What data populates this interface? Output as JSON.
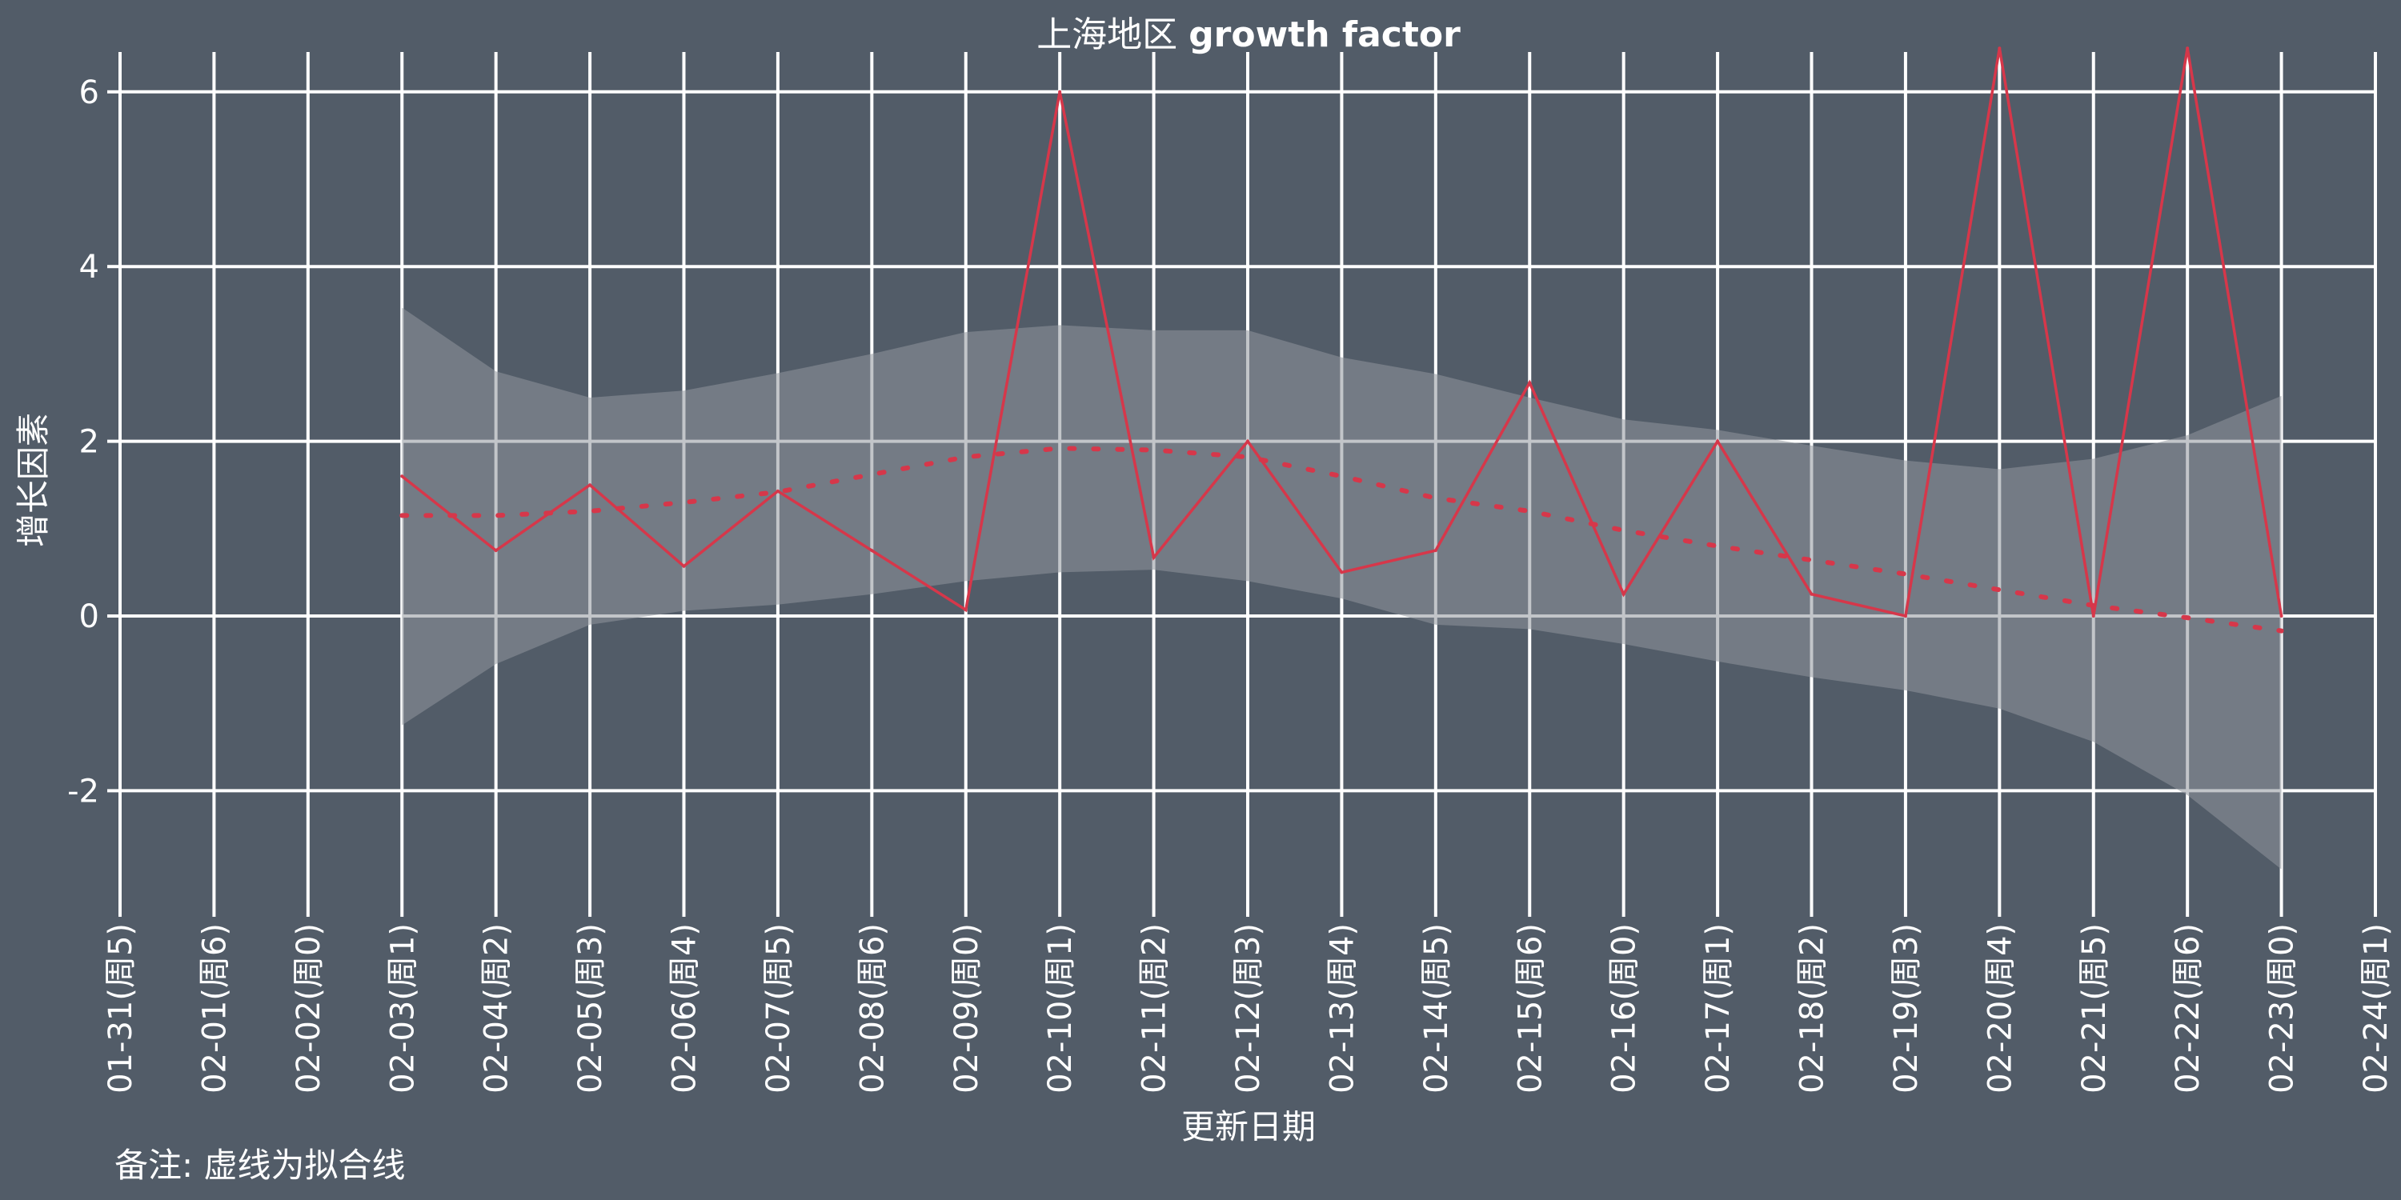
{
  "chart_data": {
    "type": "line",
    "title_prefix": "上海地区",
    "title_suffix": "growth factor",
    "xlabel": "更新日期",
    "ylabel": "增长因素",
    "note": "备注: 虚线为拟合线",
    "ylim": [
      -3.4,
      6.5
    ],
    "y_ticks": [
      -2,
      0,
      2,
      4,
      6
    ],
    "y_tick_labels": [
      "-2",
      "0",
      "2",
      "4",
      "6"
    ],
    "x_tick_labels": [
      "01-31(周5)",
      "02-01(周6)",
      "02-02(周0)",
      "02-03(周1)",
      "02-04(周2)",
      "02-05(周3)",
      "02-06(周4)",
      "02-07(周5)",
      "02-08(周6)",
      "02-09(周0)",
      "02-10(周1)",
      "02-11(周2)",
      "02-12(周3)",
      "02-13(周4)",
      "02-14(周5)",
      "02-15(周6)",
      "02-16(周0)",
      "02-17(周1)",
      "02-18(周2)",
      "02-19(周3)",
      "02-20(周4)",
      "02-21(周5)",
      "02-22(周6)",
      "02-23(周0)",
      "02-24(周1)"
    ],
    "grid": true,
    "colors": {
      "background": "#525c68",
      "grid": "#ffffff",
      "series": "#d6374a",
      "band": "#8f959c",
      "text": "#ffffff"
    },
    "series": [
      {
        "style": "solid",
        "x": [
          "02-03(周1)",
          "02-04(周2)",
          "02-05(周3)",
          "02-06(周4)",
          "02-07(周5)",
          "02-08(周6)",
          "02-09(周0)",
          "02-10(周1)",
          "02-11(周2)",
          "02-12(周3)",
          "02-13(周4)",
          "02-14(周5)",
          "02-15(周6)",
          "02-16(周0)",
          "02-17(周1)",
          "02-18(周2)",
          "02-19(周3)",
          "02-20(周4)",
          "02-21(周5)",
          "02-22(周6)",
          "02-23(周0)"
        ],
        "values": [
          1.6,
          0.75,
          1.5,
          0.57,
          1.43,
          0.75,
          0.07,
          6.0,
          0.67,
          2.0,
          0.5,
          0.75,
          2.67,
          0.25,
          2.0,
          0.25,
          0.0,
          6.5,
          0.0,
          6.5,
          0.0
        ]
      },
      {
        "style": "dotted",
        "x": [
          "02-03(周1)",
          "02-04(周2)",
          "02-05(周3)",
          "02-06(周4)",
          "02-07(周5)",
          "02-08(周6)",
          "02-09(周0)",
          "02-10(周1)",
          "02-11(周2)",
          "02-12(周3)",
          "02-13(周4)",
          "02-14(周5)",
          "02-15(周6)",
          "02-16(周0)",
          "02-17(周1)",
          "02-18(周2)",
          "02-19(周3)",
          "02-20(周4)",
          "02-21(周5)",
          "02-22(周6)",
          "02-23(周0)"
        ],
        "values": [
          1.15,
          1.15,
          1.2,
          1.3,
          1.42,
          1.62,
          1.82,
          1.92,
          1.9,
          1.82,
          1.6,
          1.35,
          1.2,
          0.98,
          0.8,
          0.64,
          0.48,
          0.3,
          0.12,
          -0.02,
          -0.17
        ],
        "band_lower": [
          -1.25,
          -0.55,
          -0.1,
          0.06,
          0.13,
          0.25,
          0.4,
          0.5,
          0.53,
          0.4,
          0.2,
          -0.1,
          -0.15,
          -0.32,
          -0.52,
          -0.7,
          -0.85,
          -1.06,
          -1.44,
          -2.05,
          -2.9
        ],
        "band_upper": [
          3.53,
          2.8,
          2.5,
          2.58,
          2.78,
          3.0,
          3.25,
          3.33,
          3.27,
          3.27,
          2.96,
          2.77,
          2.5,
          2.25,
          2.13,
          1.95,
          1.78,
          1.68,
          1.8,
          2.07,
          2.52
        ]
      }
    ]
  }
}
